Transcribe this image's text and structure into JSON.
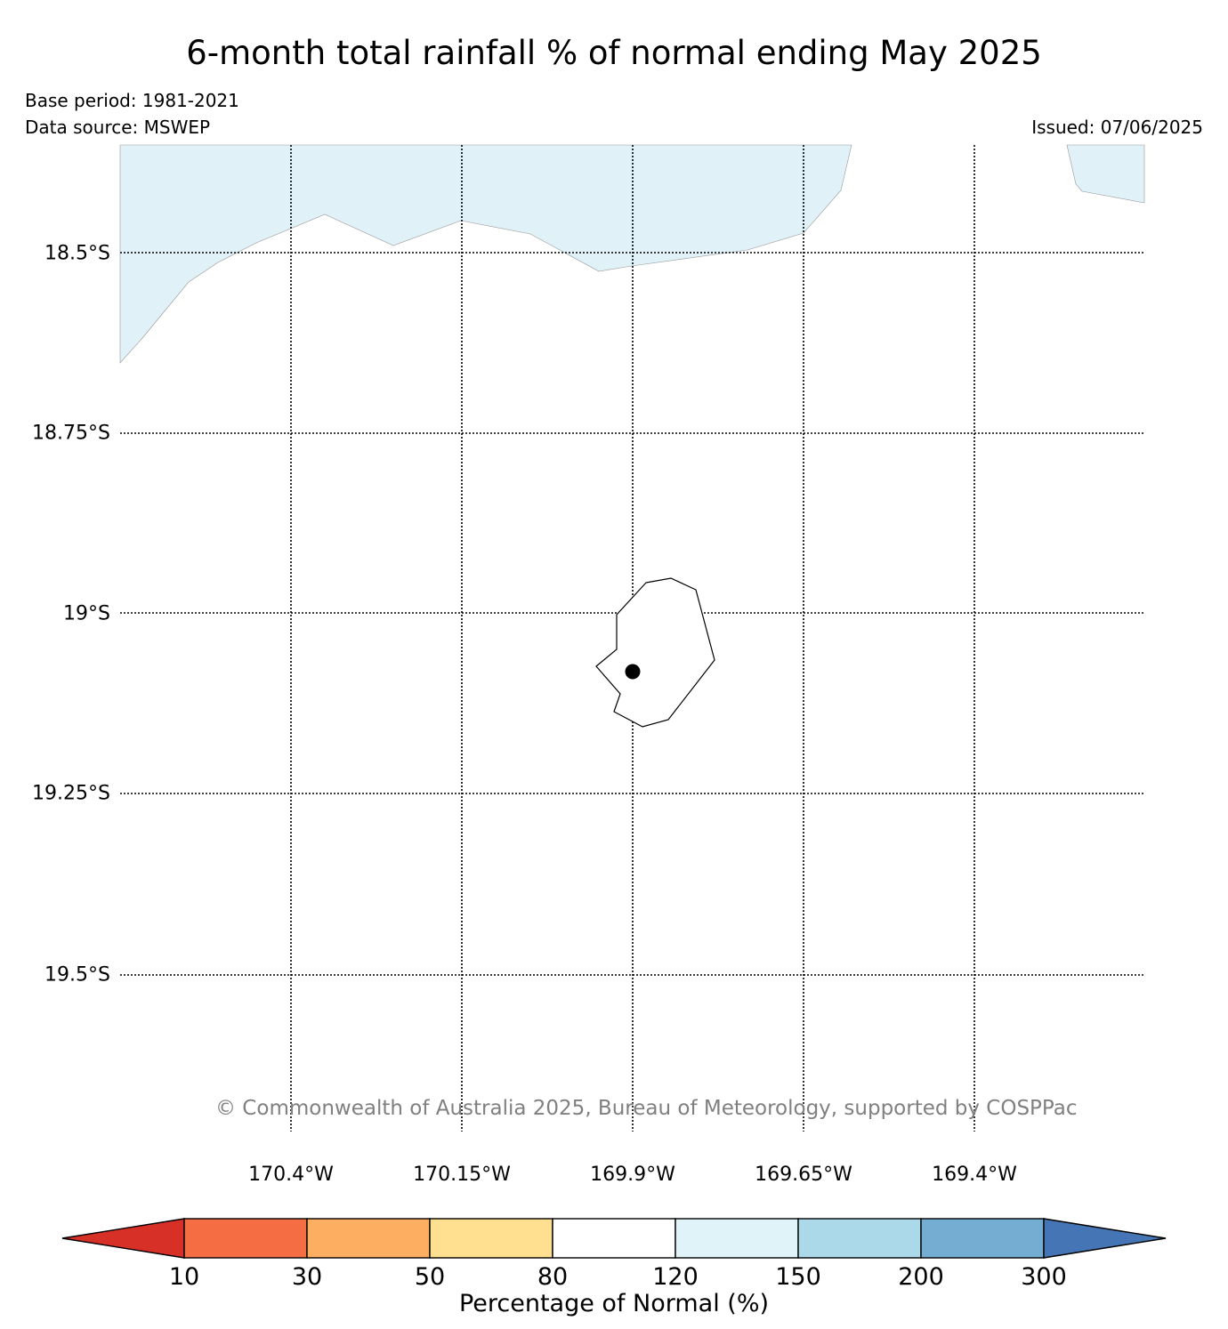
{
  "header": {
    "title": "6-month total rainfall % of normal ending May 2025",
    "base_period": "Base period: 1981-2021",
    "data_source": "Data source: MSWEP",
    "issued": "Issued: 07/06/2025"
  },
  "map": {
    "lat_labels": [
      "18.5°S",
      "18.75°S",
      "19°S",
      "19.25°S",
      "19.5°S"
    ],
    "lon_labels": [
      "170.4°W",
      "170.15°W",
      "169.9°W",
      "169.65°W",
      "169.4°W"
    ],
    "gridlines": "dotted",
    "features": [
      "niue-coastline",
      "station-marker",
      "rainfall-contour-120-150"
    ],
    "copyright": "© Commonwealth of Australia 2025, Bureau of Meteorology, supported by COSPPac"
  },
  "colorbar": {
    "title": "Percentage of Normal (%)",
    "ticks": [
      "10",
      "30",
      "50",
      "80",
      "120",
      "150",
      "200",
      "300"
    ],
    "colors": [
      "#d73027",
      "#f46d43",
      "#fdae61",
      "#fee090",
      "#ffffff",
      "#e0f3f8",
      "#abd9e9",
      "#74add1",
      "#4575b4"
    ],
    "extend": "both"
  }
}
